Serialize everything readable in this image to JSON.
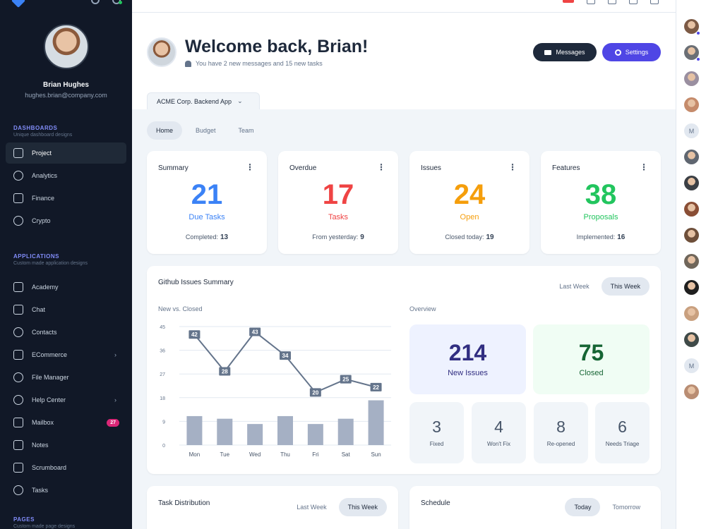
{
  "user": {
    "name": "Brian Hughes",
    "email": "hughes.brian@company.com"
  },
  "sidebar": {
    "dashboards": {
      "title": "DASHBOARDS",
      "subtitle": "Unique dashboard designs",
      "items": [
        {
          "label": "Project",
          "icon": "clipboard-check-icon"
        },
        {
          "label": "Analytics",
          "icon": "chart-pie-icon"
        },
        {
          "label": "Finance",
          "icon": "cash-icon"
        },
        {
          "label": "Crypto",
          "icon": "currency-dollar-icon"
        }
      ]
    },
    "applications": {
      "title": "APPLICATIONS",
      "subtitle": "Custom made application designs",
      "items": [
        {
          "label": "Academy",
          "icon": "academic-cap-icon"
        },
        {
          "label": "Chat",
          "icon": "chat-bubble-icon"
        },
        {
          "label": "Contacts",
          "icon": "user-group-icon"
        },
        {
          "label": "ECommerce",
          "icon": "shopping-cart-icon"
        },
        {
          "label": "File Manager",
          "icon": "cloud-icon"
        },
        {
          "label": "Help Center",
          "icon": "support-icon"
        },
        {
          "label": "Mailbox",
          "icon": "mail-icon",
          "badge": "27"
        },
        {
          "label": "Notes",
          "icon": "pencil-square-icon"
        },
        {
          "label": "Scrumboard",
          "icon": "view-boards-icon"
        },
        {
          "label": "Tasks",
          "icon": "check-circle-icon"
        }
      ]
    },
    "pages": {
      "title": "PAGES",
      "subtitle": "Custom made page designs"
    }
  },
  "header": {
    "welcome": "Welcome back, Brian!",
    "subtitle": "You have 2 new messages and 15 new tasks",
    "messages_button": "Messages",
    "settings_button": "Settings",
    "project_selector": "ACME Corp. Backend App"
  },
  "tabs": [
    "Home",
    "Budget",
    "Team"
  ],
  "stats": [
    {
      "title": "Summary",
      "value": "21",
      "label": "Due Tasks",
      "footer_label": "Completed:",
      "footer_value": "13",
      "color": "#3b82f6"
    },
    {
      "title": "Overdue",
      "value": "17",
      "label": "Tasks",
      "footer_label": "From yesterday:",
      "footer_value": "9",
      "color": "#ef4444"
    },
    {
      "title": "Issues",
      "value": "24",
      "label": "Open",
      "footer_label": "Closed today:",
      "footer_value": "19",
      "color": "#f59e0b"
    },
    {
      "title": "Features",
      "value": "38",
      "label": "Proposals",
      "footer_label": "Implemented:",
      "footer_value": "16",
      "color": "#22c55e"
    }
  ],
  "github": {
    "title": "Github Issues Summary",
    "range_options": [
      "Last Week",
      "This Week"
    ],
    "selected_range": "This Week",
    "chart_label": "New vs. Closed",
    "overview_label": "Overview",
    "new_issues": {
      "value": "214",
      "label": "New Issues",
      "bg": "#eef2ff",
      "color": "#312e81"
    },
    "closed": {
      "value": "75",
      "label": "Closed",
      "bg": "#f0fdf4",
      "color": "#166534"
    },
    "small": [
      {
        "value": "3",
        "label": "Fixed"
      },
      {
        "value": "4",
        "label": "Won't Fix"
      },
      {
        "value": "8",
        "label": "Re-opened"
      },
      {
        "value": "6",
        "label": "Needs Triage"
      }
    ]
  },
  "chart_data": {
    "type": "bar",
    "categories": [
      "Mon",
      "Tue",
      "Wed",
      "Thu",
      "Fri",
      "Sat",
      "Sun"
    ],
    "series": [
      {
        "type": "line",
        "values": [
          42,
          28,
          43,
          34,
          20,
          25,
          22
        ],
        "color": "#64748b"
      },
      {
        "type": "bar",
        "values": [
          11,
          10,
          8,
          11,
          8,
          10,
          17
        ],
        "color": "#a5b0c4"
      }
    ],
    "yticks": [
      0,
      9,
      18,
      27,
      36,
      45
    ],
    "ylim": [
      0,
      45
    ],
    "grid": true
  },
  "task_distribution": {
    "title": "Task Distribution",
    "range_options": [
      "Last Week",
      "This Week"
    ],
    "selected_range": "This Week"
  },
  "schedule": {
    "title": "Schedule",
    "options": [
      "Today",
      "Tomorrow"
    ],
    "selected": "Today"
  },
  "rail": {
    "avatars": [
      {
        "kind": "photo",
        "color": "#7c5a45",
        "online": true
      },
      {
        "kind": "photo",
        "color": "#6b6f75",
        "online": true
      },
      {
        "kind": "photo",
        "color": "#9a8fa0",
        "online": false
      },
      {
        "kind": "photo",
        "color": "#c58b6b",
        "online": false
      },
      {
        "kind": "initial",
        "initial": "M",
        "online": false
      },
      {
        "kind": "photo",
        "color": "#5f6670",
        "online": false
      },
      {
        "kind": "photo",
        "color": "#3b3f45",
        "online": false
      },
      {
        "kind": "photo",
        "color": "#8a4e35",
        "online": false
      },
      {
        "kind": "photo",
        "color": "#6e4f3a",
        "online": false
      },
      {
        "kind": "photo",
        "color": "#70665a",
        "online": false
      },
      {
        "kind": "photo",
        "color": "#1f1f1f",
        "online": false
      },
      {
        "kind": "photo",
        "color": "#c9a07f",
        "online": false
      },
      {
        "kind": "photo",
        "color": "#3f4a48",
        "online": false
      },
      {
        "kind": "initial",
        "initial": "M",
        "online": false
      },
      {
        "kind": "photo",
        "color": "#b98d73",
        "online": false
      }
    ]
  }
}
